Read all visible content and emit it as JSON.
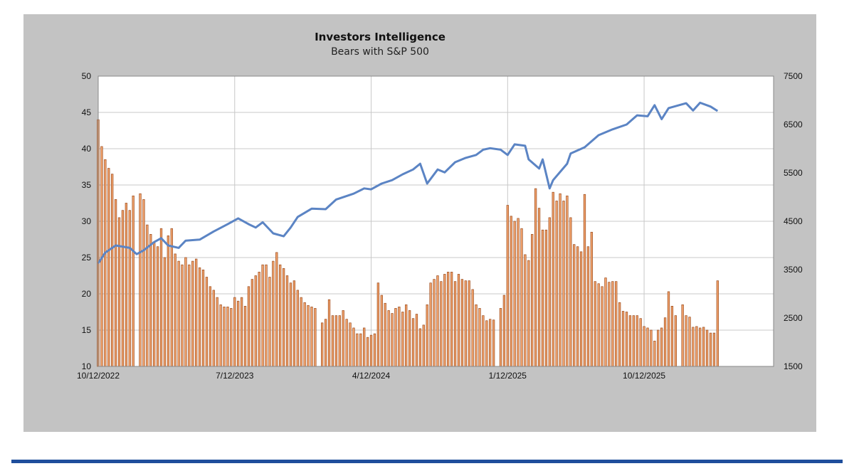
{
  "chart_data": {
    "type": "bar",
    "title": "Investors Intelligence",
    "subtitle": "Bears with S&P 500",
    "x_unit": "weeks since 10/12/2022",
    "x_range_weeks": [
      0,
      193
    ],
    "x_ticks": [
      {
        "week": 0,
        "label": "10/12/2022"
      },
      {
        "week": 39,
        "label": "7/12/2023"
      },
      {
        "week": 78,
        "label": "4/12/2024"
      },
      {
        "week": 117,
        "label": "1/12/2025"
      },
      {
        "week": 156,
        "label": "10/12/2025"
      }
    ],
    "y_left": {
      "range": [
        10,
        50
      ],
      "ticks": [
        "10",
        "15",
        "20",
        "25",
        "30",
        "35",
        "40",
        "45",
        "50"
      ]
    },
    "y_right": {
      "range": [
        1500,
        7500
      ],
      "ticks": [
        "1500",
        "2500",
        "3500",
        "4500",
        "5500",
        "6500",
        "7500"
      ]
    },
    "grid": true,
    "series": [
      {
        "name": "Bears (%)",
        "type": "bar",
        "axis": "left",
        "color": "#f2a46e",
        "edge_color": "#9a4a1c",
        "values": [
          44,
          40.3,
          38.5,
          37.3,
          36.5,
          33,
          30.5,
          31.5,
          32.5,
          31.5,
          33.5,
          null,
          33.8,
          33,
          29.5,
          28.2,
          27,
          26.5,
          29,
          25,
          28,
          29,
          25.5,
          24.5,
          24,
          25,
          24,
          24.5,
          24.8,
          23.6,
          23.3,
          22.3,
          21,
          20.5,
          19.5,
          18.5,
          18.2,
          18.2,
          18,
          19.5,
          19,
          19.5,
          18.3,
          21,
          22,
          22.5,
          23,
          24,
          24,
          22.3,
          24.5,
          25.7,
          24,
          23.5,
          22.5,
          21.5,
          21.8,
          20.5,
          19.5,
          18.8,
          18.4,
          18.2,
          18,
          null,
          16,
          16.5,
          19.2,
          17,
          17,
          17,
          17.7,
          16.5,
          16,
          15.3,
          14.5,
          14.5,
          15.3,
          14,
          14.3,
          14.5,
          21.5,
          19.8,
          18.7,
          17.7,
          17.3,
          18,
          18.2,
          17.5,
          18.5,
          17.7,
          16.6,
          17.2,
          15.2,
          15.7,
          18.5,
          21.5,
          22,
          22.5,
          21.7,
          22.7,
          23,
          23,
          21.7,
          22.7,
          22,
          21.8,
          21.8,
          20.6,
          18.5,
          18,
          17,
          16.3,
          16.5,
          16.4,
          null,
          18,
          19.8,
          32.2,
          30.7,
          30,
          30.4,
          29,
          25.4,
          24.6,
          28.2,
          34.5,
          31.8,
          28.8,
          28.8,
          30.5,
          34,
          32.8,
          33.8,
          32.8,
          33.5,
          30.5,
          26.8,
          26.5,
          25.8,
          33.7,
          26.5,
          28.5,
          21.7,
          21.4,
          21,
          22.2,
          21.6,
          21.7,
          21.7,
          18.8,
          17.6,
          17.5,
          17,
          17,
          17,
          16.6,
          15.5,
          15.3,
          15,
          13.5,
          15,
          15.3,
          16.7,
          20.3,
          18.3,
          17,
          null,
          18.5,
          17,
          16.8,
          15.4,
          15.5,
          15.3,
          15.4,
          15,
          14.6,
          14.6,
          21.8
        ]
      },
      {
        "name": "S&P 500",
        "type": "line",
        "axis": "right",
        "color": "#5b84c4",
        "points": [
          [
            0,
            3630
          ],
          [
            2,
            3850
          ],
          [
            5,
            4000
          ],
          [
            9,
            3950
          ],
          [
            11,
            3820
          ],
          [
            13,
            3900
          ],
          [
            16,
            4070
          ],
          [
            18,
            4150
          ],
          [
            20,
            4000
          ],
          [
            23,
            3950
          ],
          [
            25,
            4100
          ],
          [
            29,
            4120
          ],
          [
            33,
            4290
          ],
          [
            37,
            4440
          ],
          [
            40,
            4560
          ],
          [
            43,
            4440
          ],
          [
            45,
            4370
          ],
          [
            47,
            4480
          ],
          [
            50,
            4250
          ],
          [
            53,
            4190
          ],
          [
            55,
            4370
          ],
          [
            57,
            4590
          ],
          [
            61,
            4760
          ],
          [
            65,
            4750
          ],
          [
            68,
            4950
          ],
          [
            73,
            5070
          ],
          [
            76,
            5180
          ],
          [
            78,
            5160
          ],
          [
            81,
            5280
          ],
          [
            84,
            5350
          ],
          [
            87,
            5470
          ],
          [
            90,
            5570
          ],
          [
            92,
            5690
          ],
          [
            94,
            5280
          ],
          [
            97,
            5570
          ],
          [
            99,
            5510
          ],
          [
            102,
            5720
          ],
          [
            105,
            5810
          ],
          [
            108,
            5870
          ],
          [
            110,
            5980
          ],
          [
            112,
            6010
          ],
          [
            115,
            5980
          ],
          [
            117,
            5870
          ],
          [
            119,
            6090
          ],
          [
            122,
            6060
          ],
          [
            123,
            5780
          ],
          [
            126,
            5590
          ],
          [
            127,
            5780
          ],
          [
            129,
            5180
          ],
          [
            130,
            5350
          ],
          [
            134,
            5690
          ],
          [
            135,
            5900
          ],
          [
            139,
            6030
          ],
          [
            143,
            6280
          ],
          [
            147,
            6400
          ],
          [
            151,
            6500
          ],
          [
            154,
            6690
          ],
          [
            157,
            6670
          ],
          [
            159,
            6900
          ],
          [
            161,
            6610
          ],
          [
            163,
            6840
          ],
          [
            168,
            6940
          ],
          [
            170,
            6790
          ],
          [
            172,
            6950
          ],
          [
            175,
            6870
          ],
          [
            177,
            6780
          ]
        ]
      }
    ]
  }
}
